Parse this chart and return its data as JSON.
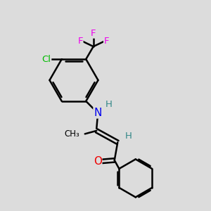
{
  "bg_color": "#dcdcdc",
  "bond_color": "#000000",
  "bond_width": 1.8,
  "atom_colors": {
    "N": "#0000ee",
    "O": "#ee0000",
    "Cl": "#00bb00",
    "F": "#ee00ee",
    "H": "#338888",
    "C": "#000000"
  },
  "font_size": 9.5,
  "fig_size": [
    3.0,
    3.0
  ],
  "dpi": 100,
  "xlim": [
    0,
    10
  ],
  "ylim": [
    0,
    10
  ]
}
